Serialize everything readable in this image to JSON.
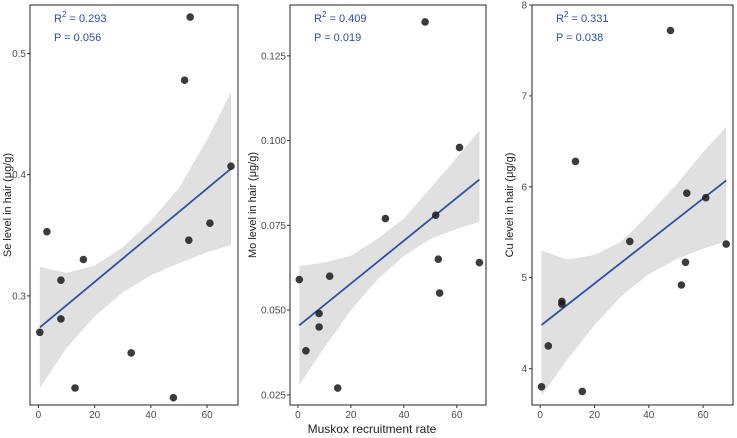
{
  "figure": {
    "xlabel_shared": "Muskox recruitment rate"
  },
  "chart_data": [
    {
      "type": "scatter",
      "ylabel": "Se level in hair (μg/g)",
      "r2_prefix": "R",
      "r2_exp": "2",
      "r2_value": " = 0.293",
      "p_text": "P = 0.056",
      "xlim": [
        -3,
        71
      ],
      "ylim": [
        0.21,
        0.54
      ],
      "xticks": [
        0,
        20,
        40,
        60
      ],
      "xticklabels": [
        "0",
        "20",
        "40",
        "60"
      ],
      "yticks": [
        0.3,
        0.4,
        0.5
      ],
      "yticklabels": [
        "0.3",
        "0.4",
        "0.5"
      ],
      "points": [
        [
          0.5,
          0.27
        ],
        [
          3,
          0.353
        ],
        [
          8,
          0.313
        ],
        [
          8,
          0.281
        ],
        [
          13,
          0.224
        ],
        [
          16,
          0.33
        ],
        [
          33,
          0.253
        ],
        [
          48,
          0.216
        ],
        [
          52,
          0.478
        ],
        [
          53.5,
          0.346
        ],
        [
          54,
          0.53
        ],
        [
          61,
          0.36
        ],
        [
          68.5,
          0.407
        ]
      ],
      "fit": {
        "x": [
          0.5,
          68.5
        ],
        "y": [
          0.274,
          0.405
        ]
      },
      "band": {
        "x": [
          0.5,
          10,
          20,
          30,
          40,
          50,
          60,
          68.5
        ],
        "lower": [
          0.224,
          0.257,
          0.283,
          0.303,
          0.317,
          0.327,
          0.336,
          0.342
        ],
        "upper": [
          0.324,
          0.319,
          0.325,
          0.34,
          0.362,
          0.389,
          0.429,
          0.468
        ]
      }
    },
    {
      "type": "scatter",
      "ylabel": "Mo level in hair (μg/g)",
      "r2_prefix": "R",
      "r2_exp": "2",
      "r2_value": " = 0.409",
      "p_text": "P = 0.019",
      "xlim": [
        -3,
        71
      ],
      "ylim": [
        0.022,
        0.14
      ],
      "xticks": [
        0,
        20,
        40,
        60
      ],
      "xticklabels": [
        "0",
        "20",
        "40",
        "60"
      ],
      "yticks": [
        0.025,
        0.05,
        0.075,
        0.1,
        0.125
      ],
      "yticklabels": [
        "0.025",
        "0.050",
        "0.075",
        "0.100",
        "0.125"
      ],
      "points": [
        [
          0.5,
          0.059
        ],
        [
          3,
          0.038
        ],
        [
          8,
          0.049
        ],
        [
          8,
          0.045
        ],
        [
          12,
          0.06
        ],
        [
          15,
          0.027
        ],
        [
          33,
          0.077
        ],
        [
          48,
          0.135
        ],
        [
          52,
          0.078
        ],
        [
          53,
          0.065
        ],
        [
          53.5,
          0.055
        ],
        [
          61,
          0.098
        ],
        [
          68.5,
          0.064
        ]
      ],
      "fit": {
        "x": [
          0.5,
          68.5
        ],
        "y": [
          0.0455,
          0.0885
        ]
      },
      "band": {
        "x": [
          0.5,
          10,
          20,
          30,
          40,
          50,
          60,
          68.5
        ],
        "lower": [
          0.028,
          0.039,
          0.05,
          0.059,
          0.066,
          0.071,
          0.074,
          0.076
        ],
        "upper": [
          0.063,
          0.064,
          0.066,
          0.071,
          0.077,
          0.086,
          0.095,
          0.103
        ]
      }
    },
    {
      "type": "scatter",
      "ylabel": "Cu level in hair (μg/g)",
      "r2_prefix": "R",
      "r2_exp": "2",
      "r2_value": " = 0.331",
      "p_text": "P = 0.038",
      "xlim": [
        -3,
        71
      ],
      "ylim": [
        3.6,
        8.0
      ],
      "xticks": [
        0,
        20,
        40,
        60
      ],
      "xticklabels": [
        "0",
        "20",
        "40",
        "60"
      ],
      "yticks": [
        4,
        5,
        6,
        7,
        8
      ],
      "yticklabels": [
        "4",
        "5",
        "6",
        "7",
        "8"
      ],
      "points": [
        [
          0.5,
          3.8
        ],
        [
          3,
          4.25
        ],
        [
          8,
          4.74
        ],
        [
          8,
          4.71
        ],
        [
          13,
          6.28
        ],
        [
          15.5,
          3.75
        ],
        [
          33,
          5.4
        ],
        [
          48,
          7.72
        ],
        [
          52,
          4.92
        ],
        [
          53.5,
          5.17
        ],
        [
          54,
          5.93
        ],
        [
          61,
          5.88
        ],
        [
          68.5,
          5.37
        ]
      ],
      "fit": {
        "x": [
          0.5,
          68.5
        ],
        "y": [
          4.48,
          6.07
        ]
      },
      "band": {
        "x": [
          0.5,
          10,
          20,
          30,
          40,
          50,
          60,
          68.5
        ],
        "lower": [
          3.7,
          4.1,
          4.48,
          4.8,
          5.04,
          5.2,
          5.32,
          5.4
        ],
        "upper": [
          5.3,
          5.2,
          5.25,
          5.4,
          5.7,
          6.02,
          6.38,
          6.66
        ]
      }
    }
  ]
}
